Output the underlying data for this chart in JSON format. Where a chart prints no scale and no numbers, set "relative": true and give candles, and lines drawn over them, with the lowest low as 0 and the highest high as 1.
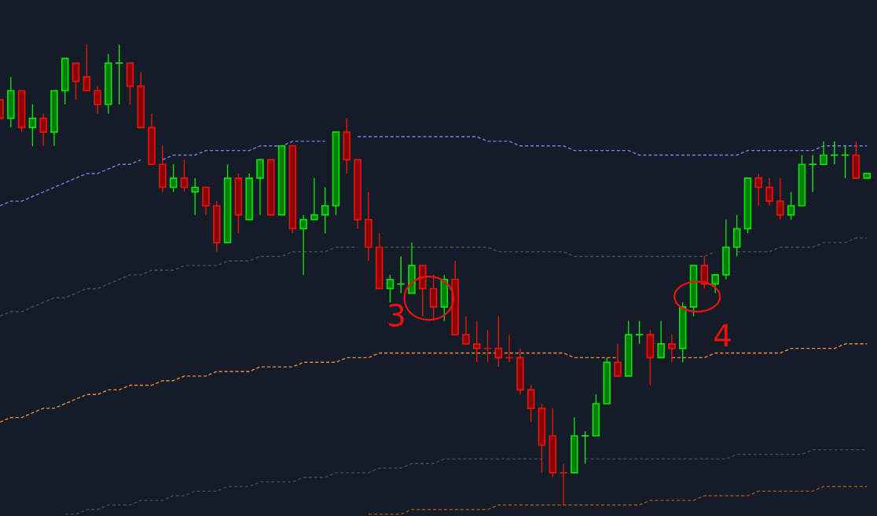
{
  "chart_data": {
    "type": "candlestick",
    "relative": true,
    "categories": [
      null,
      null,
      null,
      null,
      null,
      null,
      null,
      null,
      null,
      null,
      null,
      null,
      null,
      null,
      null,
      null,
      null,
      null,
      null,
      null,
      null,
      null,
      null,
      null,
      null,
      null,
      null,
      null,
      null,
      null,
      null,
      null,
      null,
      null,
      null,
      null,
      null,
      null,
      null,
      null,
      null,
      null,
      null,
      null,
      null,
      null,
      null,
      null,
      null,
      null,
      null,
      null,
      null,
      null,
      null,
      null,
      null,
      null,
      null,
      null,
      null,
      null,
      null,
      null,
      null,
      null,
      null,
      null,
      null,
      null,
      null,
      null,
      null,
      null,
      null,
      null,
      null,
      null,
      null,
      null,
      null
    ],
    "ohlc": [
      [
        0.88,
        0.88,
        0.84,
        0.84
      ],
      [
        0.84,
        0.93,
        0.82,
        0.9
      ],
      [
        0.9,
        0.9,
        0.81,
        0.82
      ],
      [
        0.82,
        0.87,
        0.78,
        0.84
      ],
      [
        0.84,
        0.85,
        0.78,
        0.81
      ],
      [
        0.81,
        0.9,
        0.78,
        0.9
      ],
      [
        0.9,
        0.97,
        0.87,
        0.97
      ],
      [
        0.96,
        0.96,
        0.88,
        0.92
      ],
      [
        0.93,
        1.0,
        0.9,
        0.9
      ],
      [
        0.9,
        0.91,
        0.85,
        0.87
      ],
      [
        0.87,
        0.98,
        0.85,
        0.96
      ],
      [
        0.96,
        1.0,
        0.87,
        0.96
      ],
      [
        0.96,
        0.96,
        0.87,
        0.91
      ],
      [
        0.91,
        0.94,
        0.82,
        0.82
      ],
      [
        0.82,
        0.85,
        0.74,
        0.74
      ],
      [
        0.74,
        0.78,
        0.68,
        0.69
      ],
      [
        0.69,
        0.74,
        0.68,
        0.71
      ],
      [
        0.71,
        0.75,
        0.68,
        0.69
      ],
      [
        0.68,
        0.71,
        0.63,
        0.69
      ],
      [
        0.69,
        0.69,
        0.63,
        0.65
      ],
      [
        0.65,
        0.66,
        0.55,
        0.57
      ],
      [
        0.57,
        0.74,
        0.57,
        0.71
      ],
      [
        0.71,
        0.72,
        0.59,
        0.63
      ],
      [
        0.62,
        0.72,
        0.62,
        0.71
      ],
      [
        0.71,
        0.75,
        0.63,
        0.75
      ],
      [
        0.75,
        0.75,
        0.63,
        0.63
      ],
      [
        0.63,
        0.78,
        0.63,
        0.78
      ],
      [
        0.78,
        0.78,
        0.59,
        0.6
      ],
      [
        0.6,
        0.63,
        0.5,
        0.62
      ],
      [
        0.62,
        0.71,
        0.62,
        0.63
      ],
      [
        0.63,
        0.69,
        0.59,
        0.65
      ],
      [
        0.65,
        0.81,
        0.63,
        0.81
      ],
      [
        0.81,
        0.84,
        0.72,
        0.75
      ],
      [
        0.75,
        0.75,
        0.6,
        0.62
      ],
      [
        0.62,
        0.68,
        0.53,
        0.56
      ],
      [
        0.56,
        0.59,
        0.47,
        0.47
      ],
      [
        0.47,
        0.5,
        0.44,
        0.49
      ],
      [
        0.48,
        0.54,
        0.46,
        0.48
      ],
      [
        0.46,
        0.57,
        0.46,
        0.52
      ],
      [
        0.52,
        0.52,
        0.41,
        0.47
      ],
      [
        0.47,
        0.5,
        0.4,
        0.43
      ],
      [
        0.43,
        0.5,
        0.4,
        0.49
      ],
      [
        0.49,
        0.53,
        0.37,
        0.37
      ],
      [
        0.37,
        0.41,
        0.35,
        0.35
      ],
      [
        0.35,
        0.4,
        0.31,
        0.34
      ],
      [
        0.34,
        0.38,
        0.31,
        0.34
      ],
      [
        0.34,
        0.41,
        0.3,
        0.32
      ],
      [
        0.32,
        0.37,
        0.31,
        0.32
      ],
      [
        0.32,
        0.34,
        0.24,
        0.25
      ],
      [
        0.25,
        0.26,
        0.18,
        0.21
      ],
      [
        0.21,
        0.22,
        0.07,
        0.13
      ],
      [
        0.15,
        0.21,
        0.06,
        0.07
      ],
      [
        0.07,
        0.09,
        0,
        0.07
      ],
      [
        0.07,
        0.19,
        0.07,
        0.15
      ],
      [
        0.15,
        0.16,
        0.09,
        0.15
      ],
      [
        0.15,
        0.24,
        0.15,
        0.22
      ],
      [
        0.22,
        0.32,
        0.22,
        0.31
      ],
      [
        0.31,
        0.35,
        0.28,
        0.28
      ],
      [
        0.28,
        0.4,
        0.28,
        0.37
      ],
      [
        0.37,
        0.4,
        0.35,
        0.37
      ],
      [
        0.37,
        0.38,
        0.26,
        0.32
      ],
      [
        0.32,
        0.4,
        0.32,
        0.35
      ],
      [
        0.35,
        0.37,
        0.31,
        0.34
      ],
      [
        0.34,
        0.44,
        0.31,
        0.43
      ],
      [
        0.43,
        0.52,
        0.41,
        0.52
      ],
      [
        0.52,
        0.54,
        0.47,
        0.48
      ],
      [
        0.48,
        0.5,
        0.46,
        0.5
      ],
      [
        0.5,
        0.62,
        0.49,
        0.56
      ],
      [
        0.56,
        0.63,
        0.54,
        0.6
      ],
      [
        0.6,
        0.71,
        0.59,
        0.71
      ],
      [
        0.71,
        0.72,
        0.65,
        0.69
      ],
      [
        0.69,
        0.71,
        0.65,
        0.66
      ],
      [
        0.66,
        0.71,
        0.62,
        0.63
      ],
      [
        0.63,
        0.68,
        0.62,
        0.65
      ],
      [
        0.65,
        0.76,
        0.65,
        0.74
      ],
      [
        0.74,
        0.76,
        0.68,
        0.74
      ],
      [
        0.74,
        0.79,
        0.74,
        0.76
      ],
      [
        0.76,
        0.79,
        0.74,
        0.76
      ],
      [
        0.76,
        0.78,
        0.71,
        0.76
      ],
      [
        0.76,
        0.79,
        0.71,
        0.71
      ],
      [
        0.71,
        0.72,
        0.71,
        0.72
      ]
    ],
    "colors": [
      "#8b0000",
      "#008000",
      "#8b0000",
      "#008000",
      "#8b0000",
      "#008000",
      "#008000",
      "#8b0000",
      "#8b0000",
      "#8b0000",
      "#008000",
      "#1ee61e",
      "#8b0000",
      "#8b0000",
      "#8b0000",
      "#8b0000",
      "#008000",
      "#8b0000",
      "#008000",
      "#8b0000",
      "#8b0000",
      "#008000",
      "#8b0000",
      "#008000",
      "#008000",
      "#8b0000",
      "#008000",
      "#8b0000",
      "#008000",
      "#008000",
      "#008000",
      "#008000",
      "#8b0000",
      "#8b0000",
      "#8b0000",
      "#8b0000",
      "#008000",
      "#1ee61e",
      "#008000",
      "#8b0000",
      "#8b0000",
      "#008000",
      "#8b0000",
      "#8b0000",
      "#8b0000",
      "#e01010",
      "#8b0000",
      "#e01010",
      "#8b0000",
      "#8b0000",
      "#8b0000",
      "#8b0000",
      "#e01010",
      "#008000",
      "#1ee61e",
      "#008000",
      "#008000",
      "#8b0000",
      "#008000",
      "#1ee61e",
      "#8b0000",
      "#008000",
      "#8b0000",
      "#008000",
      "#008000",
      "#8b0000",
      "#008000",
      "#008000",
      "#008000",
      "#008000",
      "#8b0000",
      "#8b0000",
      "#8b0000",
      "#008000",
      "#008000",
      "#1ee61e",
      "#008000",
      "#1ee61e",
      "#1ee61e",
      "#8b0000",
      "#008000"
    ],
    "series": [
      {
        "type": "line",
        "color": "#7b7bea",
        "line_style": "dashed",
        "values": [
          0.65,
          0.66,
          0.66,
          0.67,
          0.68,
          0.69,
          0.7,
          0.71,
          0.72,
          0.72,
          0.73,
          0.74,
          0.74,
          0.75,
          null,
          0.75,
          0.76,
          0.76,
          0.76,
          0.77,
          0.77,
          0.77,
          0.77,
          0.77,
          0.78,
          0.78,
          0.78,
          0.79,
          0.79,
          0.79,
          0.79,
          null,
          null,
          0.8,
          0.8,
          0.8,
          0.8,
          0.8,
          0.8,
          0.8,
          0.8,
          0.8,
          0.8,
          0.8,
          0.8,
          0.79,
          0.79,
          0.79,
          0.78,
          0.78,
          0.78,
          0.78,
          0.78,
          0.77,
          0.77,
          0.77,
          0.77,
          0.77,
          0.77,
          0.76,
          0.76,
          0.76,
          0.76,
          0.76,
          0.76,
          0.76,
          0.76,
          0.76,
          0.76,
          0.77,
          0.77,
          0.77,
          0.77,
          0.77,
          0.77,
          0.77,
          0.78,
          0.78,
          0.78,
          0.78,
          0.78
        ]
      },
      {
        "type": "line",
        "color": "#3d4f66",
        "line_style": "dashed",
        "values": [
          0.41,
          0.42,
          0.42,
          0.43,
          0.44,
          0.45,
          0.45,
          0.46,
          0.47,
          0.47,
          0.48,
          0.49,
          0.5,
          0.5,
          0.51,
          0.51,
          0.51,
          0.52,
          0.52,
          0.52,
          0.52,
          0.53,
          0.53,
          0.53,
          0.54,
          0.54,
          0.54,
          0.55,
          0.55,
          0.55,
          0.55,
          0.56,
          0.56,
          0.56,
          null,
          0.56,
          0.56,
          0.56,
          0.56,
          0.56,
          0.56,
          0.56,
          0.56,
          0.56,
          0.56,
          0.56,
          0.55,
          0.55,
          0.55,
          0.55,
          0.55,
          0.55,
          0.55,
          0.54,
          0.54,
          0.54,
          0.54,
          0.54,
          0.54,
          0.54,
          0.54,
          0.54,
          0.54,
          0.54,
          0.54,
          0.54,
          0.55,
          null,
          0.55,
          0.55,
          0.55,
          0.55,
          0.56,
          0.56,
          0.56,
          0.56,
          0.57,
          0.57,
          0.57,
          0.58,
          0.58
        ]
      },
      {
        "type": "line",
        "color": "#f08a4b",
        "line_style": "dashed",
        "values": [
          0.18,
          0.19,
          0.19,
          0.2,
          0.21,
          0.21,
          0.22,
          0.23,
          0.24,
          0.24,
          0.25,
          0.25,
          0.26,
          0.26,
          0.26,
          0.27,
          0.27,
          0.28,
          0.28,
          0.28,
          0.29,
          0.29,
          0.29,
          0.29,
          0.3,
          0.3,
          0.3,
          0.3,
          0.31,
          0.31,
          0.31,
          0.31,
          0.32,
          0.32,
          0.32,
          0.33,
          0.33,
          0.33,
          0.33,
          0.33,
          0.33,
          0.33,
          0.33,
          0.33,
          0.33,
          0.33,
          0.33,
          0.33,
          0.33,
          0.33,
          0.33,
          0.33,
          0.33,
          0.32,
          0.32,
          0.32,
          0.32,
          0.32,
          null,
          null,
          null,
          null,
          0.32,
          0.32,
          0.32,
          0.32,
          0.33,
          0.33,
          0.33,
          0.33,
          0.33,
          0.33,
          0.33,
          0.34,
          0.34,
          0.34,
          0.34,
          0.34,
          0.35,
          0.35,
          0.35
        ]
      },
      {
        "type": "line",
        "color": "#3a4a60",
        "line_style": "dashed",
        "values": [
          null,
          null,
          null,
          null,
          null,
          null,
          -0.02,
          -0.02,
          -0.01,
          -0.01,
          0,
          0,
          0,
          0.01,
          0.01,
          0.01,
          0.02,
          0.02,
          0.03,
          0.03,
          0.03,
          0.04,
          0.04,
          0.04,
          0.05,
          0.05,
          0.05,
          0.05,
          0.06,
          0.06,
          0.06,
          0.07,
          0.07,
          0.07,
          0.07,
          0.08,
          0.08,
          0.08,
          0.09,
          0.09,
          0.09,
          0.1,
          0.1,
          0.1,
          0.1,
          0.1,
          0.1,
          0.1,
          0.1,
          0.1,
          0.1,
          null,
          null,
          null,
          0.1,
          0.1,
          0.1,
          0.1,
          0.1,
          0.1,
          0.1,
          0.1,
          0.1,
          0.1,
          0.1,
          0.1,
          0.1,
          0.1,
          0.11,
          0.11,
          0.11,
          0.11,
          0.11,
          0.11,
          0.11,
          0.12,
          0.12,
          0.12,
          0.12,
          0.12,
          0.12
        ]
      },
      {
        "type": "line",
        "color": "#a0520f",
        "line_style": "dashed",
        "values": [
          null,
          null,
          null,
          null,
          null,
          null,
          null,
          null,
          null,
          null,
          null,
          null,
          null,
          null,
          null,
          null,
          null,
          null,
          null,
          null,
          null,
          null,
          null,
          null,
          null,
          null,
          null,
          null,
          null,
          null,
          null,
          null,
          null,
          null,
          -0.02,
          -0.02,
          -0.02,
          -0.02,
          -0.01,
          -0.01,
          -0.01,
          -0.01,
          -0.01,
          -0.01,
          -0.01,
          -0.01,
          0,
          0,
          0,
          0,
          0,
          0,
          0,
          0,
          0,
          0,
          0,
          0,
          0,
          0,
          0.01,
          0.01,
          0.01,
          0.01,
          0.01,
          0.02,
          0.02,
          0.02,
          0.02,
          0.02,
          0.03,
          0.03,
          0.03,
          0.03,
          0.03,
          0.03,
          0.04,
          0.04,
          0.04,
          0.04,
          0.04
        ]
      }
    ],
    "annotations": [
      "3",
      "4"
    ]
  }
}
